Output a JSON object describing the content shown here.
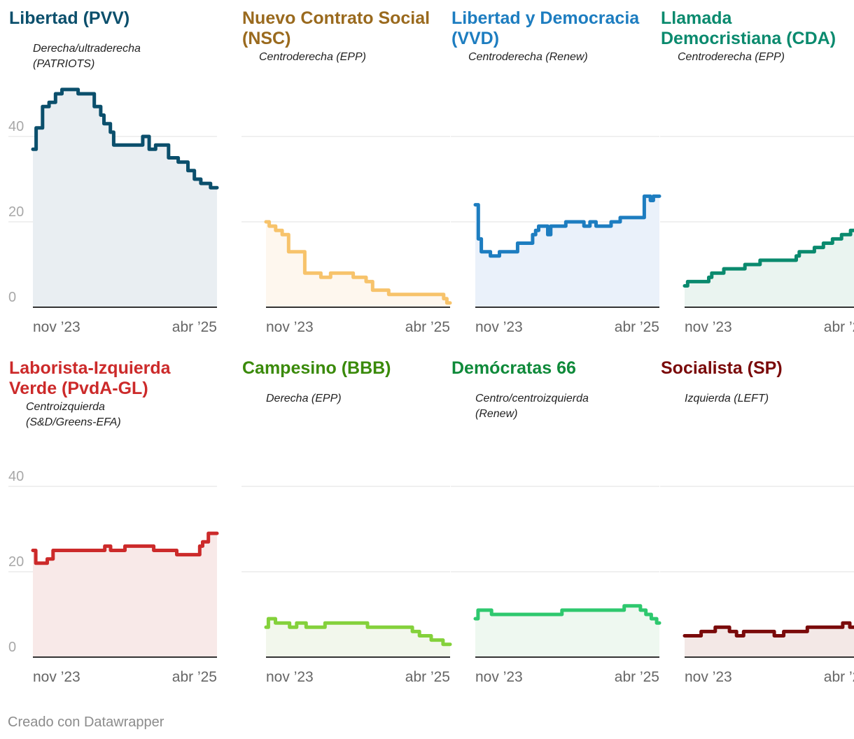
{
  "chart_data": {
    "type": "line",
    "ylim": [
      0,
      52
    ],
    "yticks": [
      0,
      20,
      40
    ],
    "xtick_labels": [
      "nov ’23",
      "abr ’25"
    ],
    "grid": true,
    "panels": [
      {
        "title": [
          "Libertad (PVV)"
        ],
        "subtitle": [
          "Derecha/ultraderecha",
          "(PATRIOTS)"
        ],
        "color": "#0b4f6c",
        "fill": "#e9eef2",
        "values": [
          37,
          42,
          42,
          47,
          47,
          48,
          48,
          50,
          50,
          51,
          51,
          51,
          51,
          51,
          50,
          50,
          50,
          50,
          50,
          47,
          47,
          45,
          43,
          43,
          41,
          38,
          38,
          38,
          38,
          38,
          38,
          38,
          38,
          38,
          40,
          40,
          37,
          37,
          38,
          38,
          38,
          38,
          35,
          35,
          35,
          34,
          34,
          34,
          32,
          32,
          30,
          30,
          29,
          29,
          29,
          28,
          28
        ]
      },
      {
        "title": [
          "Nuevo Contrato Social",
          "(NSC)"
        ],
        "subtitle": [
          "Centroderecha (EPP)"
        ],
        "color": "#f7c36b",
        "fill": "#fef7ee",
        "title_color": "#9a6a1e",
        "values": [
          20,
          19,
          19,
          18,
          18,
          17,
          17,
          13,
          13,
          13,
          13,
          13,
          8,
          8,
          8,
          8,
          8,
          7,
          7,
          7,
          8,
          8,
          8,
          8,
          8,
          8,
          8,
          7,
          7,
          7,
          7,
          6,
          6,
          4,
          4,
          4,
          4,
          4,
          3,
          3,
          3,
          3,
          3,
          3,
          3,
          3,
          3,
          3,
          3,
          3,
          3,
          3,
          3,
          3,
          3,
          2,
          1
        ]
      },
      {
        "title": [
          "Libertad y Democracia",
          "(VVD)"
        ],
        "subtitle": [
          "Centroderecha (Renew)"
        ],
        "color": "#1d7dc0",
        "fill": "#eaf1fa",
        "values": [
          24,
          16,
          13,
          13,
          13,
          12,
          12,
          12,
          13,
          13,
          13,
          13,
          13,
          13,
          15,
          15,
          15,
          15,
          15,
          17,
          18,
          19,
          19,
          19,
          17,
          19,
          19,
          19,
          19,
          19,
          20,
          20,
          20,
          20,
          20,
          20,
          19,
          19,
          20,
          20,
          19,
          19,
          19,
          19,
          19,
          20,
          20,
          20,
          21,
          21,
          21,
          21,
          21,
          21,
          21,
          21,
          26,
          26,
          25,
          26,
          26
        ]
      },
      {
        "title": [
          "Llamada",
          "Democristiana (CDA)"
        ],
        "subtitle": [
          "Centroderecha (EPP)"
        ],
        "color": "#0a8a6e",
        "fill": "#eaf4f0",
        "values": [
          5,
          6,
          6,
          6,
          6,
          6,
          6,
          6,
          7,
          8,
          8,
          8,
          8,
          9,
          9,
          9,
          9,
          9,
          9,
          9,
          10,
          10,
          10,
          10,
          10,
          11,
          11,
          11,
          11,
          11,
          11,
          11,
          11,
          11,
          11,
          11,
          11,
          12,
          13,
          13,
          13,
          13,
          13,
          14,
          14,
          14,
          15,
          15,
          15,
          16,
          16,
          16,
          17,
          17,
          17,
          18,
          18,
          18,
          19,
          19,
          19
        ]
      },
      {
        "title": [
          "Laborista-Izquierda",
          "Verde (PvdA-GL)"
        ],
        "subtitle": [
          "Centroizquierda",
          "(S&D/Greens-EFA)"
        ],
        "color": "#cc2a2a",
        "fill": "#f8e9e8",
        "values": [
          25,
          22,
          22,
          22,
          22,
          23,
          23,
          25,
          25,
          25,
          25,
          25,
          25,
          25,
          25,
          25,
          25,
          25,
          25,
          25,
          25,
          25,
          25,
          25,
          25,
          26,
          26,
          25,
          25,
          25,
          25,
          25,
          26,
          26,
          26,
          26,
          26,
          26,
          26,
          26,
          26,
          26,
          25,
          25,
          25,
          25,
          25,
          25,
          25,
          25,
          24,
          24,
          24,
          24,
          24,
          24,
          24,
          24,
          26,
          27,
          27,
          29,
          29,
          29
        ]
      },
      {
        "title": [
          "Campesino (BBB)"
        ],
        "subtitle": [
          "Derecha (EPP)"
        ],
        "color": "#84d13b",
        "fill": "#f2f7ec",
        "title_color": "#3a8a0a",
        "values": [
          7,
          9,
          9,
          9,
          8,
          8,
          8,
          8,
          8,
          8,
          7,
          7,
          7,
          8,
          8,
          8,
          8,
          7,
          7,
          7,
          7,
          7,
          7,
          7,
          7,
          8,
          8,
          8,
          8,
          8,
          8,
          8,
          8,
          8,
          8,
          8,
          8,
          8,
          8,
          8,
          8,
          8,
          8,
          7,
          7,
          7,
          7,
          7,
          7,
          7,
          7,
          7,
          7,
          7,
          7,
          7,
          7,
          7,
          7,
          7,
          7,
          7,
          6,
          6,
          6,
          5,
          5,
          5,
          5,
          5,
          4,
          4,
          4,
          4,
          4,
          3,
          3,
          3
        ]
      },
      {
        "title": [
          "Demócratas 66"
        ],
        "subtitle": [
          "Centro/centroizquierda",
          "(Renew)"
        ],
        "color": "#2ec86e",
        "fill": "#eef8f0",
        "title_color": "#0f8a3a",
        "values": [
          9,
          11,
          11,
          11,
          11,
          11,
          10,
          10,
          10,
          10,
          10,
          10,
          10,
          10,
          10,
          10,
          10,
          10,
          10,
          10,
          10,
          10,
          10,
          10,
          10,
          10,
          10,
          10,
          10,
          10,
          10,
          10,
          11,
          11,
          11,
          11,
          11,
          11,
          11,
          11,
          11,
          11,
          11,
          11,
          11,
          11,
          11,
          11,
          11,
          11,
          11,
          11,
          11,
          11,
          11,
          12,
          12,
          12,
          12,
          12,
          12,
          11,
          11,
          10,
          10,
          9,
          9,
          8
        ]
      },
      {
        "title": [
          "Socialista (SP)"
        ],
        "subtitle": [
          "Izquierda (LEFT)"
        ],
        "color": "#7a0a0a",
        "fill": "#f3e8e6",
        "values": [
          5,
          5,
          5,
          5,
          5,
          5,
          5,
          6,
          6,
          6,
          6,
          6,
          6,
          7,
          7,
          7,
          7,
          7,
          7,
          6,
          6,
          6,
          5,
          5,
          5,
          6,
          6,
          6,
          6,
          6,
          6,
          6,
          6,
          6,
          6,
          6,
          6,
          6,
          5,
          5,
          5,
          5,
          6,
          6,
          6,
          6,
          6,
          6,
          6,
          6,
          6,
          6,
          7,
          7,
          7,
          7,
          7,
          7,
          7,
          7,
          7,
          7,
          7,
          7,
          7,
          7,
          7,
          8,
          8,
          8,
          7,
          7,
          7,
          7,
          7,
          7,
          8,
          8
        ]
      }
    ]
  },
  "footer": {
    "credit": "Creado con Datawrapper"
  }
}
